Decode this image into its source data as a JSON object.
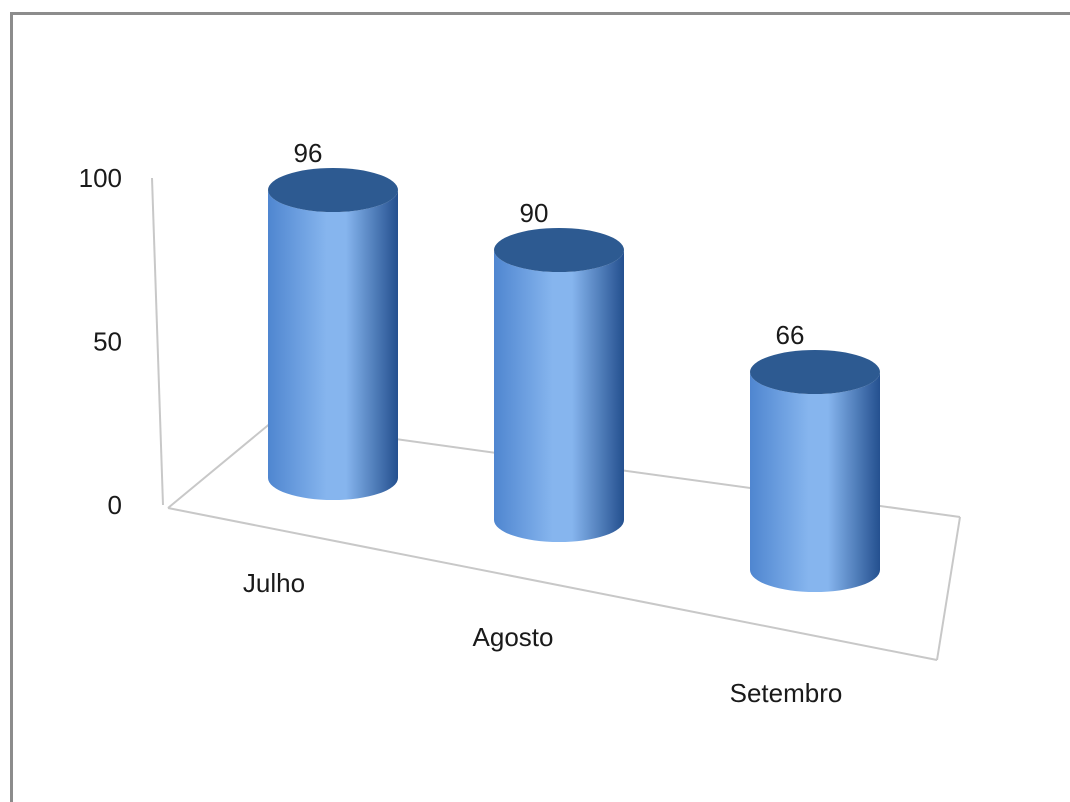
{
  "chart_data": {
    "type": "bar",
    "style": "3d-cylinder",
    "categories": [
      "Julho",
      "Agosto",
      "Setembro"
    ],
    "values": [
      96,
      90,
      66
    ],
    "data_labels": [
      "96",
      "90",
      "66"
    ],
    "title": "",
    "xlabel": "",
    "ylabel": "",
    "ylim": [
      0,
      100
    ],
    "yticks": [
      0,
      50,
      100
    ],
    "ytick_labels": [
      "0",
      "50",
      "100"
    ],
    "grid": false,
    "legend": "none",
    "bar_color": "#4f86d0",
    "bar_highlight": "#86b5ee",
    "bar_shadow": "#24508f",
    "bar_top": "#2d5a91"
  }
}
